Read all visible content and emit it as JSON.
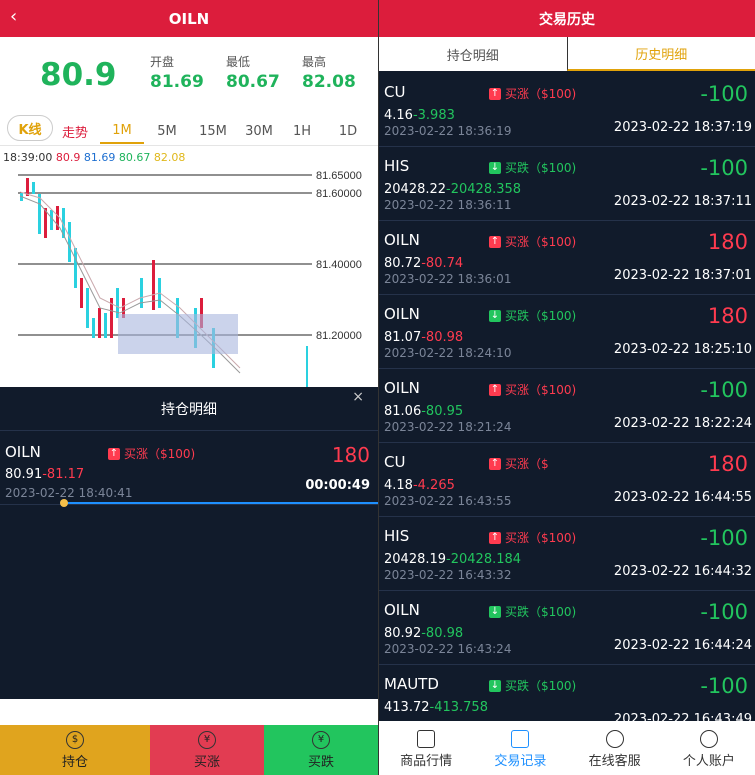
{
  "left": {
    "title": "OILN",
    "price": "80.9",
    "stats": [
      {
        "label": "开盘",
        "value": "81.69"
      },
      {
        "label": "最低",
        "value": "80.67"
      },
      {
        "label": "最高",
        "value": "82.08"
      }
    ],
    "tabs": [
      "K线",
      "走势",
      "1M",
      "5M",
      "15M",
      "30M",
      "1H",
      "1D"
    ],
    "active_tab": "1M",
    "legend": {
      "time": "18:39:00",
      "v1": "80.9",
      "v2": "81.69",
      "v3": "80.67",
      "v4": "82.08"
    },
    "price_levels": [
      "81.65000",
      "81.60000",
      "81.40000",
      "81.20000"
    ],
    "position_sheet": {
      "title": "持仓明细",
      "close": "×",
      "row": {
        "symbol": "OILN",
        "direction": "买涨（$100)",
        "amount": "180",
        "open": "80.91",
        "close": "81.17",
        "time": "2023-02-22 18:40:41",
        "duration": "00:00:49"
      }
    },
    "bottom": [
      {
        "label": "持仓",
        "bg": "#e0a41e",
        "icon": "$"
      },
      {
        "label": "买涨",
        "bg": "#e23c52",
        "icon": "¥"
      },
      {
        "label": "买跌",
        "bg": "#22c55e",
        "icon": "¥"
      }
    ]
  },
  "right": {
    "title": "交易历史",
    "tabs": [
      "持仓明细",
      "历史明细"
    ],
    "active_tab": "历史明细",
    "rows": [
      {
        "sym": "CU",
        "dir": "up",
        "dir_label": "买涨（$100)",
        "amt": "-100",
        "sign": "g",
        "open": "4.16",
        "close": "3.983",
        "closecol": "g",
        "t1": "2023-02-22 18:36:19",
        "t2": "2023-02-22 18:37:19"
      },
      {
        "sym": "HIS",
        "dir": "down",
        "dir_label": "买跌（$100)",
        "amt": "-100",
        "sign": "g",
        "open": "20428.22",
        "close": "20428.358",
        "closecol": "g",
        "t1": "2023-02-22 18:36:11",
        "t2": "2023-02-22 18:37:11"
      },
      {
        "sym": "OILN",
        "dir": "up",
        "dir_label": "买涨（$100)",
        "amt": "180",
        "sign": "r",
        "open": "80.72",
        "close": "80.74",
        "closecol": "r",
        "t1": "2023-02-22 18:36:01",
        "t2": "2023-02-22 18:37:01"
      },
      {
        "sym": "OILN",
        "dir": "down",
        "dir_label": "买跌（$100)",
        "amt": "180",
        "sign": "r",
        "open": "81.07",
        "close": "80.98",
        "closecol": "r",
        "t1": "2023-02-22 18:24:10",
        "t2": "2023-02-22 18:25:10"
      },
      {
        "sym": "OILN",
        "dir": "up",
        "dir_label": "买涨（$100)",
        "amt": "-100",
        "sign": "g",
        "open": "81.06",
        "close": "80.95",
        "closecol": "g",
        "t1": "2023-02-22 18:21:24",
        "t2": "2023-02-22 18:22:24"
      },
      {
        "sym": "CU",
        "dir": "up",
        "dir_label": "买涨（$",
        "amt": "180",
        "sign": "r",
        "open": "4.18",
        "close": "4.265",
        "closecol": "r",
        "t1": "2023-02-22 16:43:55",
        "t2": "2023-02-22 16:44:55"
      },
      {
        "sym": "HIS",
        "dir": "up",
        "dir_label": "买涨（$100)",
        "amt": "-100",
        "sign": "g",
        "open": "20428.19",
        "close": "20428.184",
        "closecol": "g",
        "t1": "2023-02-22 16:43:32",
        "t2": "2023-02-22 16:44:32"
      },
      {
        "sym": "OILN",
        "dir": "down",
        "dir_label": "买跌（$100)",
        "amt": "-100",
        "sign": "g",
        "open": "80.92",
        "close": "80.98",
        "closecol": "g",
        "t1": "2023-02-22 16:43:24",
        "t2": "2023-02-22 16:44:24"
      },
      {
        "sym": "MAUTD",
        "dir": "down",
        "dir_label": "买跌（$100)",
        "amt": "-100",
        "sign": "g",
        "open": "413.72",
        "close": "413.758",
        "closecol": "g",
        "t1": "",
        "t2": "2023-02-22 16:43:49"
      }
    ],
    "nav": [
      "商品行情",
      "交易记录",
      "在线客服",
      "个人账户"
    ],
    "active_nav": "交易记录"
  }
}
